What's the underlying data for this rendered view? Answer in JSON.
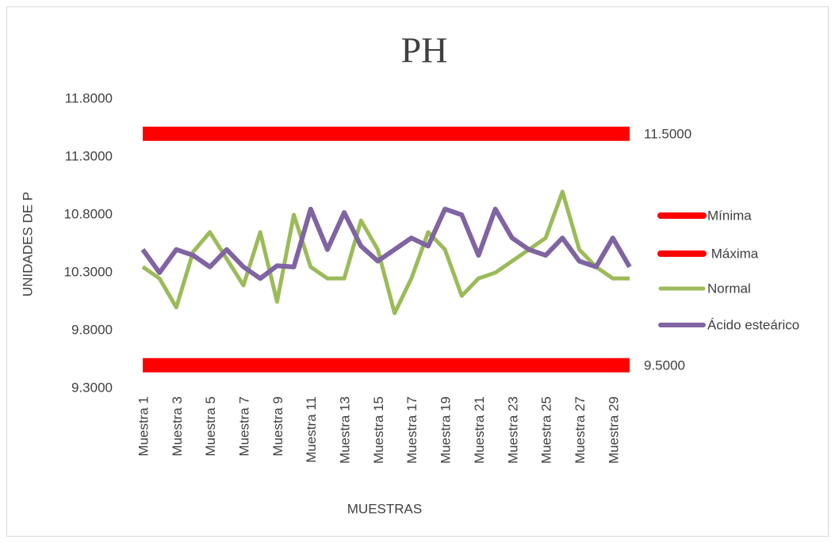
{
  "chart_data": {
    "type": "line",
    "title": "PH",
    "x_label": "MUESTRAS",
    "y_label": "UNIDADES DE P",
    "categories": [
      "Muestra 1",
      null,
      "Muestra 3",
      null,
      "Muestra 5",
      null,
      "Muestra 7",
      null,
      "Muestra 9",
      null,
      "Muestra 11",
      null,
      "Muestra 13",
      null,
      "Muestra 15",
      null,
      "Muestra 17",
      null,
      "Muestra 19",
      null,
      "Muestra 21",
      null,
      "Muestra 23",
      null,
      "Muestra 25",
      null,
      "Muestra 27",
      null,
      "Muestra 29",
      null
    ],
    "ylim": [
      9.3,
      11.8
    ],
    "yticks": [
      {
        "value": 9.3,
        "label": "9.3000"
      },
      {
        "value": 9.8,
        "label": "9.8000"
      },
      {
        "value": 10.3,
        "label": "10.3000"
      },
      {
        "value": 10.8,
        "label": "10.8000"
      },
      {
        "value": 11.3,
        "label": "11.3000"
      },
      {
        "value": 11.8,
        "label": "11.8000"
      }
    ],
    "legend": "right",
    "series": [
      {
        "name": "Mínima",
        "color": "#ff0000",
        "width": 18,
        "values": [
          9.5,
          9.5,
          9.5,
          9.5,
          9.5,
          9.5,
          9.5,
          9.5,
          9.5,
          9.5,
          9.5,
          9.5,
          9.5,
          9.5,
          9.5,
          9.5,
          9.5,
          9.5,
          9.5,
          9.5,
          9.5,
          9.5,
          9.5,
          9.5,
          9.5,
          9.5,
          9.5,
          9.5,
          9.5,
          9.5
        ],
        "value_labels": [
          null,
          null,
          null,
          null,
          null,
          null,
          null,
          null,
          null,
          null,
          null,
          null,
          null,
          null,
          null,
          null,
          null,
          null,
          null,
          null,
          null,
          null,
          null,
          null,
          null,
          null,
          null,
          null,
          null,
          "9.5000"
        ]
      },
      {
        "name": " Máxima",
        "color": "#ff0000",
        "width": 18,
        "values": [
          11.5,
          11.5,
          11.5,
          11.5,
          11.5,
          11.5,
          11.5,
          11.5,
          11.5,
          11.5,
          11.5,
          11.5,
          11.5,
          11.5,
          11.5,
          11.5,
          11.5,
          11.5,
          11.5,
          11.5,
          11.5,
          11.5,
          11.5,
          11.5,
          11.5,
          11.5,
          11.5,
          11.5,
          11.5,
          11.5
        ],
        "value_labels": [
          null,
          null,
          null,
          null,
          null,
          null,
          null,
          null,
          null,
          null,
          null,
          null,
          null,
          null,
          null,
          null,
          null,
          null,
          null,
          null,
          null,
          null,
          null,
          null,
          null,
          null,
          null,
          null,
          null,
          "11.5000"
        ]
      },
      {
        "name": "Normal",
        "color": "#9bbb59",
        "width": 5,
        "values": [
          10.35,
          10.25,
          10.0,
          10.48,
          10.65,
          10.42,
          10.19,
          10.65,
          10.05,
          10.8,
          10.35,
          10.25,
          10.25,
          10.75,
          10.5,
          9.95,
          10.25,
          10.65,
          10.5,
          10.1,
          10.25,
          10.3,
          10.4,
          10.5,
          10.6,
          11.0,
          10.5,
          10.35,
          10.25,
          10.25
        ]
      },
      {
        "name": "Ácido esteárico",
        "color": "#8064a2",
        "width": 6,
        "values": [
          10.5,
          10.3,
          10.5,
          10.45,
          10.35,
          10.5,
          10.35,
          10.25,
          10.36,
          10.35,
          10.85,
          10.5,
          10.82,
          10.53,
          10.4,
          10.5,
          10.6,
          10.53,
          10.85,
          10.8,
          10.45,
          10.85,
          10.6,
          10.5,
          10.45,
          10.6,
          10.4,
          10.35,
          10.6,
          10.35
        ]
      }
    ]
  }
}
